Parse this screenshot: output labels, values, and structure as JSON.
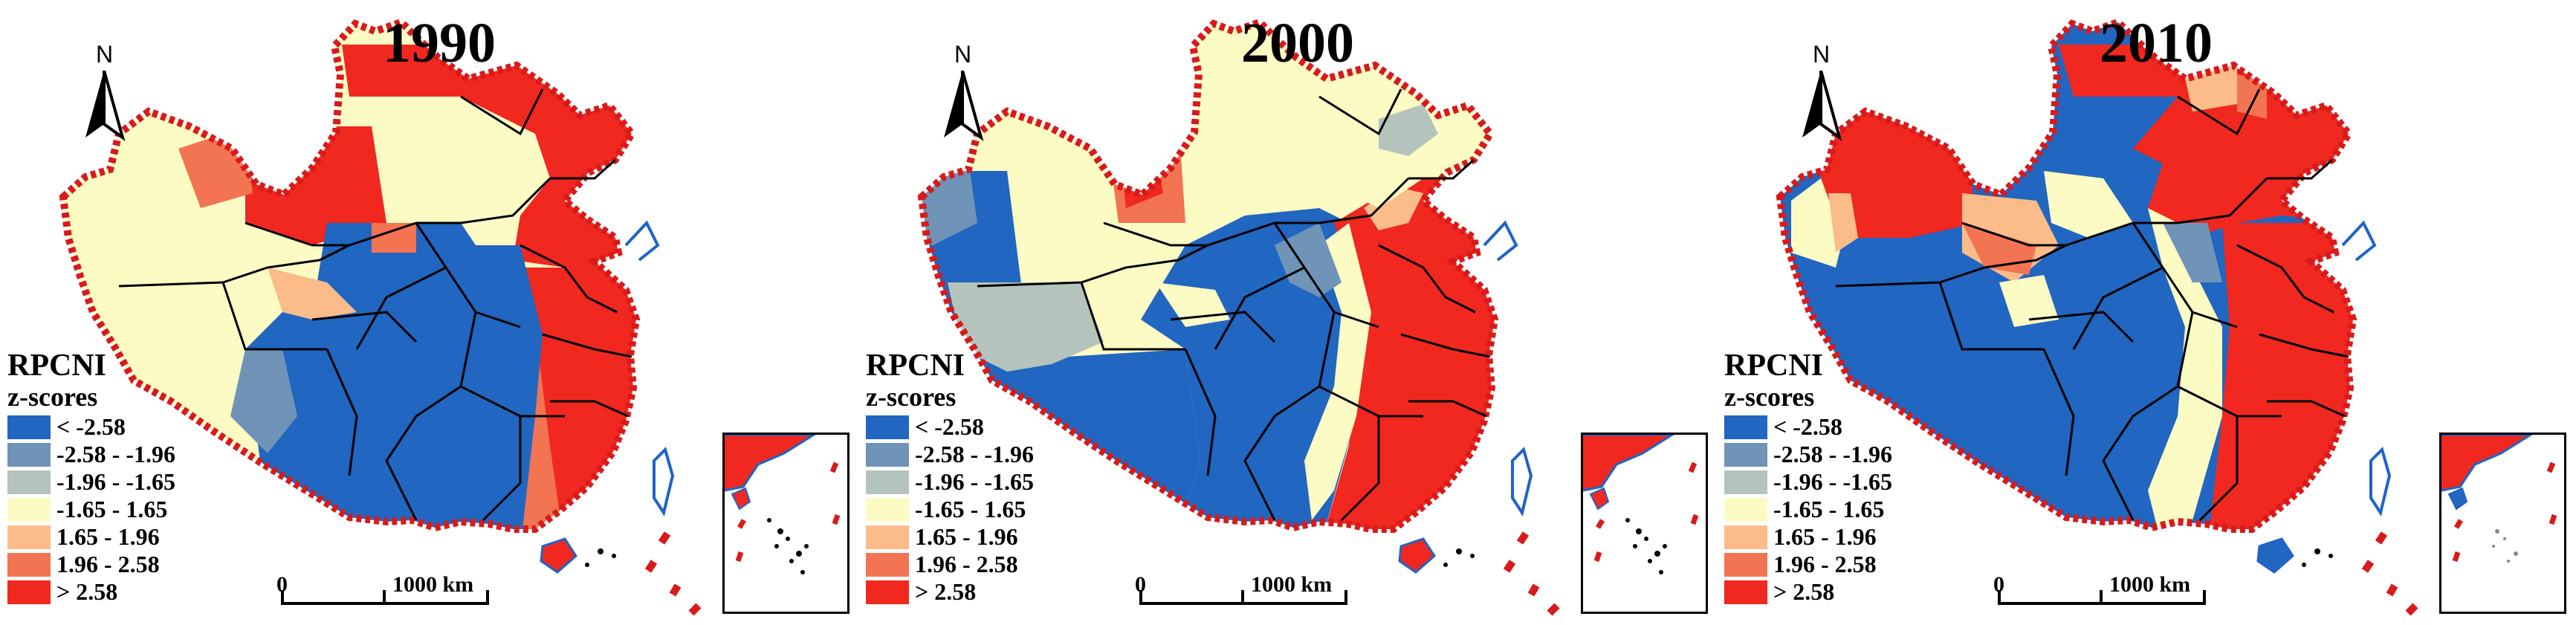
{
  "panels": [
    {
      "year": "1990"
    },
    {
      "year": "2000"
    },
    {
      "year": "2010"
    }
  ],
  "north_label": "N",
  "legend": {
    "title": "RPCNI",
    "subtitle": "z-scores",
    "items": [
      {
        "label": "< -2.58",
        "color": "#2166c0"
      },
      {
        "label": "-2.58 - -1.96",
        "color": "#6f94b8"
      },
      {
        "label": "-1.96 - -1.65",
        "color": "#b4c4bc"
      },
      {
        "label": "-1.65 - 1.65",
        "color": "#fdfbc4"
      },
      {
        "label": "1.65 - 1.96",
        "color": "#fbbc8a"
      },
      {
        "label": "1.96 - 2.58",
        "color": "#f27452"
      },
      {
        "label": "> 2.58",
        "color": "#f0281f"
      }
    ]
  },
  "scalebar": {
    "start": "0",
    "end": "1000 km"
  },
  "colors": {
    "boundary": "#d81a1a",
    "province": "#000000",
    "coast": "#1e64c8"
  }
}
